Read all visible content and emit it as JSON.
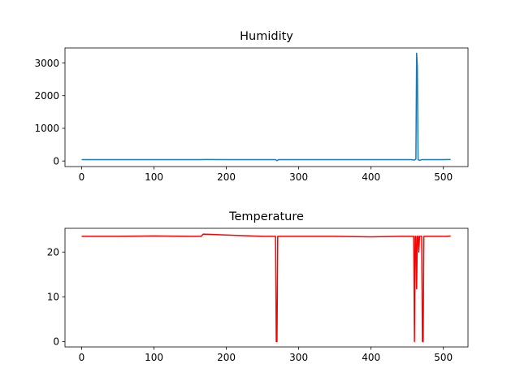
{
  "chart_data": [
    {
      "type": "line",
      "title": "Humidity",
      "xlabel": "",
      "ylabel": "",
      "xlim": [
        -23,
        534
      ],
      "ylim": [
        -170,
        3460
      ],
      "xticks": [
        0,
        100,
        200,
        300,
        400,
        500
      ],
      "yticks": [
        0,
        1000,
        2000,
        3000
      ],
      "grid": false,
      "color": "#1f77b4",
      "x": [
        0,
        50,
        100,
        150,
        165,
        170,
        200,
        250,
        268,
        270,
        272,
        300,
        350,
        400,
        440,
        455,
        460,
        462,
        463,
        464,
        465,
        467,
        470,
        480,
        500,
        505,
        510
      ],
      "values": [
        40,
        40,
        40,
        40,
        40,
        45,
        42,
        40,
        40,
        10,
        40,
        40,
        40,
        40,
        40,
        40,
        30,
        60,
        3300,
        2900,
        40,
        20,
        40,
        40,
        40,
        45,
        45
      ]
    },
    {
      "type": "line",
      "title": "Temperature",
      "xlabel": "",
      "ylabel": "",
      "xlim": [
        -23,
        534
      ],
      "ylim": [
        -1.2,
        25.3
      ],
      "xticks": [
        0,
        100,
        200,
        300,
        400,
        500
      ],
      "yticks": [
        0,
        10,
        20
      ],
      "grid": false,
      "color": "#ff0000",
      "x": [
        0,
        50,
        100,
        150,
        165,
        168,
        200,
        250,
        266,
        268,
        269,
        270,
        271,
        272,
        300,
        350,
        400,
        440,
        455,
        459,
        460,
        461,
        462,
        463,
        464,
        465,
        466,
        467,
        468,
        470,
        471,
        472,
        473,
        474,
        480,
        500,
        505,
        510
      ],
      "values": [
        23.5,
        23.5,
        23.6,
        23.5,
        23.5,
        24.0,
        23.8,
        23.5,
        23.5,
        23.5,
        0,
        0,
        23.5,
        23.5,
        23.5,
        23.5,
        23.4,
        23.5,
        23.5,
        23.5,
        0,
        23.5,
        23.5,
        11.8,
        23.5,
        23.5,
        20,
        23.5,
        23.5,
        23.5,
        0,
        0,
        23.5,
        23.5,
        23.5,
        23.5,
        23.5,
        23.6
      ]
    }
  ]
}
